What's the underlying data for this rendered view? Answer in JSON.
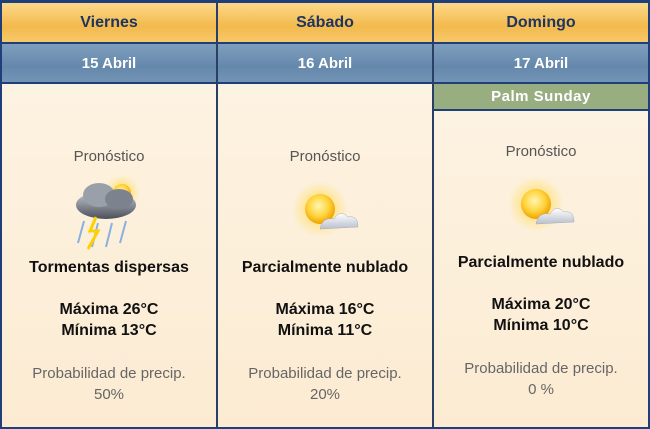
{
  "days": [
    {
      "day": "Viernes",
      "date": "15 Abril",
      "label": "Pronóstico",
      "icon": "thunderstorm-icon",
      "condition": "Tormentas dispersas",
      "max": "Máxima 26°C",
      "min": "Mínima 13°C",
      "precip_label": "Probabilidad de precip.",
      "precip": "50%"
    },
    {
      "day": "Sábado",
      "date": "16 Abril",
      "label": "Pronóstico",
      "icon": "partly-cloudy-icon",
      "condition": "Parcialmente nublado",
      "max": "Máxima 16°C",
      "min": "Mínima 11°C",
      "precip_label": "Probabilidad de precip.",
      "precip": "20%"
    },
    {
      "day": "Domingo",
      "date": "17 Abril",
      "holiday": "Palm Sunday",
      "label": "Pronóstico",
      "icon": "partly-cloudy-icon",
      "condition": "Parcialmente nublado",
      "max": "Máxima 20°C",
      "min": "Mínima 10°C",
      "precip_label": "Probabilidad de precip.",
      "precip": "0 %"
    }
  ],
  "colors": {
    "day_header": "#f3b94c",
    "date_header": "#6488ab",
    "holiday": "#98ad80",
    "body": "#fdf0dc"
  }
}
